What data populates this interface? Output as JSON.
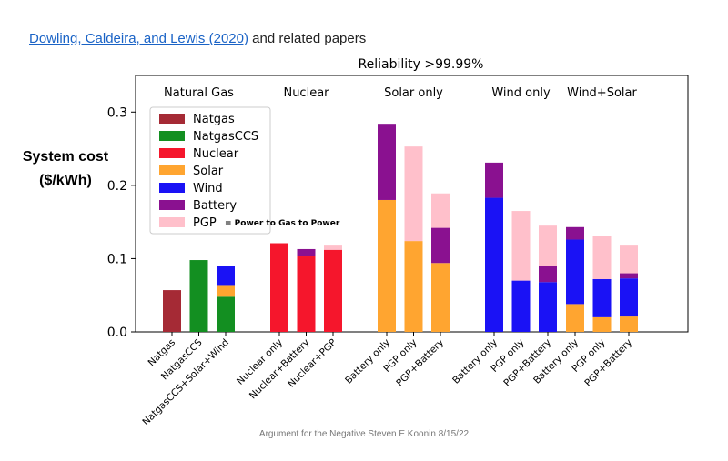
{
  "header": {
    "link_text": "Dowling, Caldeira, and Lewis (2020)",
    "trailing_text": "and related papers"
  },
  "footer": {
    "text": "Argument for the Negative   Steven E Koonin   8/15/22"
  },
  "ylabel": {
    "line1": "System cost",
    "line2": "($/kWh)"
  },
  "chart_data": {
    "type": "bar",
    "stacked": true,
    "title": "Reliability >99.99%",
    "ylabel": "System cost ($/kWh)",
    "ylim": [
      0,
      0.35
    ],
    "yticks": [
      "0.0",
      "0.1",
      "0.2",
      "0.3"
    ],
    "grid": false,
    "legend_position": "top-left",
    "groups": [
      {
        "label": "Natural Gas",
        "categories": [
          "Natgas",
          "NatgasCCS",
          "NatgasCCS+Solar+Wind"
        ]
      },
      {
        "label": "Nuclear",
        "categories": [
          "Nuclear only",
          "Nuclear+Battery",
          "Nuclear+PGP"
        ]
      },
      {
        "label": "Solar only",
        "categories": [
          "Battery only",
          "PGP only",
          "PGP+Battery"
        ]
      },
      {
        "label": "Wind only",
        "categories": [
          "Battery only",
          "PGP only",
          "PGP+Battery"
        ]
      },
      {
        "label": "Wind+Solar",
        "categories": [
          "Battery only",
          "PGP only",
          "PGP+Battery"
        ]
      }
    ],
    "legend": [
      {
        "name": "Natgas",
        "color": "#a52a35"
      },
      {
        "name": "NatgasCCS",
        "color": "#138f21"
      },
      {
        "name": "Nuclear",
        "color": "#f5162c"
      },
      {
        "name": "Solar",
        "color": "#ffa530"
      },
      {
        "name": "Wind",
        "color": "#1a12f5"
      },
      {
        "name": "Battery",
        "color": "#8a1190"
      },
      {
        "name": "PGP",
        "color": "#ffc0cb",
        "note": "= Power to Gas to Power"
      }
    ],
    "bars": [
      {
        "group": 0,
        "label": "Natgas",
        "segments": [
          {
            "series": "Natgas",
            "value": 0.057
          }
        ]
      },
      {
        "group": 0,
        "label": "NatgasCCS",
        "segments": [
          {
            "series": "NatgasCCS",
            "value": 0.098
          }
        ]
      },
      {
        "group": 0,
        "label": "NatgasCCS+Solar+Wind",
        "segments": [
          {
            "series": "NatgasCCS",
            "value": 0.048
          },
          {
            "series": "Solar",
            "value": 0.016
          },
          {
            "series": "Wind",
            "value": 0.026
          }
        ]
      },
      {
        "group": 1,
        "label": "Nuclear only",
        "segments": [
          {
            "series": "Nuclear",
            "value": 0.121
          }
        ]
      },
      {
        "group": 1,
        "label": "Nuclear+Battery",
        "segments": [
          {
            "series": "Nuclear",
            "value": 0.103
          },
          {
            "series": "Battery",
            "value": 0.01
          }
        ]
      },
      {
        "group": 1,
        "label": "Nuclear+PGP",
        "segments": [
          {
            "series": "Nuclear",
            "value": 0.112
          },
          {
            "series": "PGP",
            "value": 0.007
          }
        ]
      },
      {
        "group": 2,
        "label": "Battery only",
        "segments": [
          {
            "series": "Solar",
            "value": 0.18
          },
          {
            "series": "Battery",
            "value": 0.104
          }
        ]
      },
      {
        "group": 2,
        "label": "PGP only",
        "segments": [
          {
            "series": "Solar",
            "value": 0.124
          },
          {
            "series": "PGP",
            "value": 0.129
          }
        ]
      },
      {
        "group": 2,
        "label": "PGP+Battery",
        "segments": [
          {
            "series": "Solar",
            "value": 0.094
          },
          {
            "series": "Battery",
            "value": 0.048
          },
          {
            "series": "PGP",
            "value": 0.047
          }
        ]
      },
      {
        "group": 3,
        "label": "Battery only",
        "segments": [
          {
            "series": "Wind",
            "value": 0.183
          },
          {
            "series": "Battery",
            "value": 0.048
          }
        ]
      },
      {
        "group": 3,
        "label": "PGP only",
        "segments": [
          {
            "series": "Wind",
            "value": 0.07
          },
          {
            "series": "PGP",
            "value": 0.095
          }
        ]
      },
      {
        "group": 3,
        "label": "PGP+Battery",
        "segments": [
          {
            "series": "Wind",
            "value": 0.068
          },
          {
            "series": "Battery",
            "value": 0.022
          },
          {
            "series": "PGP",
            "value": 0.055
          }
        ]
      },
      {
        "group": 4,
        "label": "Battery only",
        "segments": [
          {
            "series": "Solar",
            "value": 0.038
          },
          {
            "series": "Wind",
            "value": 0.088
          },
          {
            "series": "Battery",
            "value": 0.017
          }
        ]
      },
      {
        "group": 4,
        "label": "PGP only",
        "segments": [
          {
            "series": "Solar",
            "value": 0.02
          },
          {
            "series": "Wind",
            "value": 0.052
          },
          {
            "series": "PGP",
            "value": 0.059
          }
        ]
      },
      {
        "group": 4,
        "label": "PGP+Battery",
        "segments": [
          {
            "series": "Solar",
            "value": 0.021
          },
          {
            "series": "Wind",
            "value": 0.052
          },
          {
            "series": "Battery",
            "value": 0.007
          },
          {
            "series": "PGP",
            "value": 0.039
          }
        ]
      }
    ]
  }
}
